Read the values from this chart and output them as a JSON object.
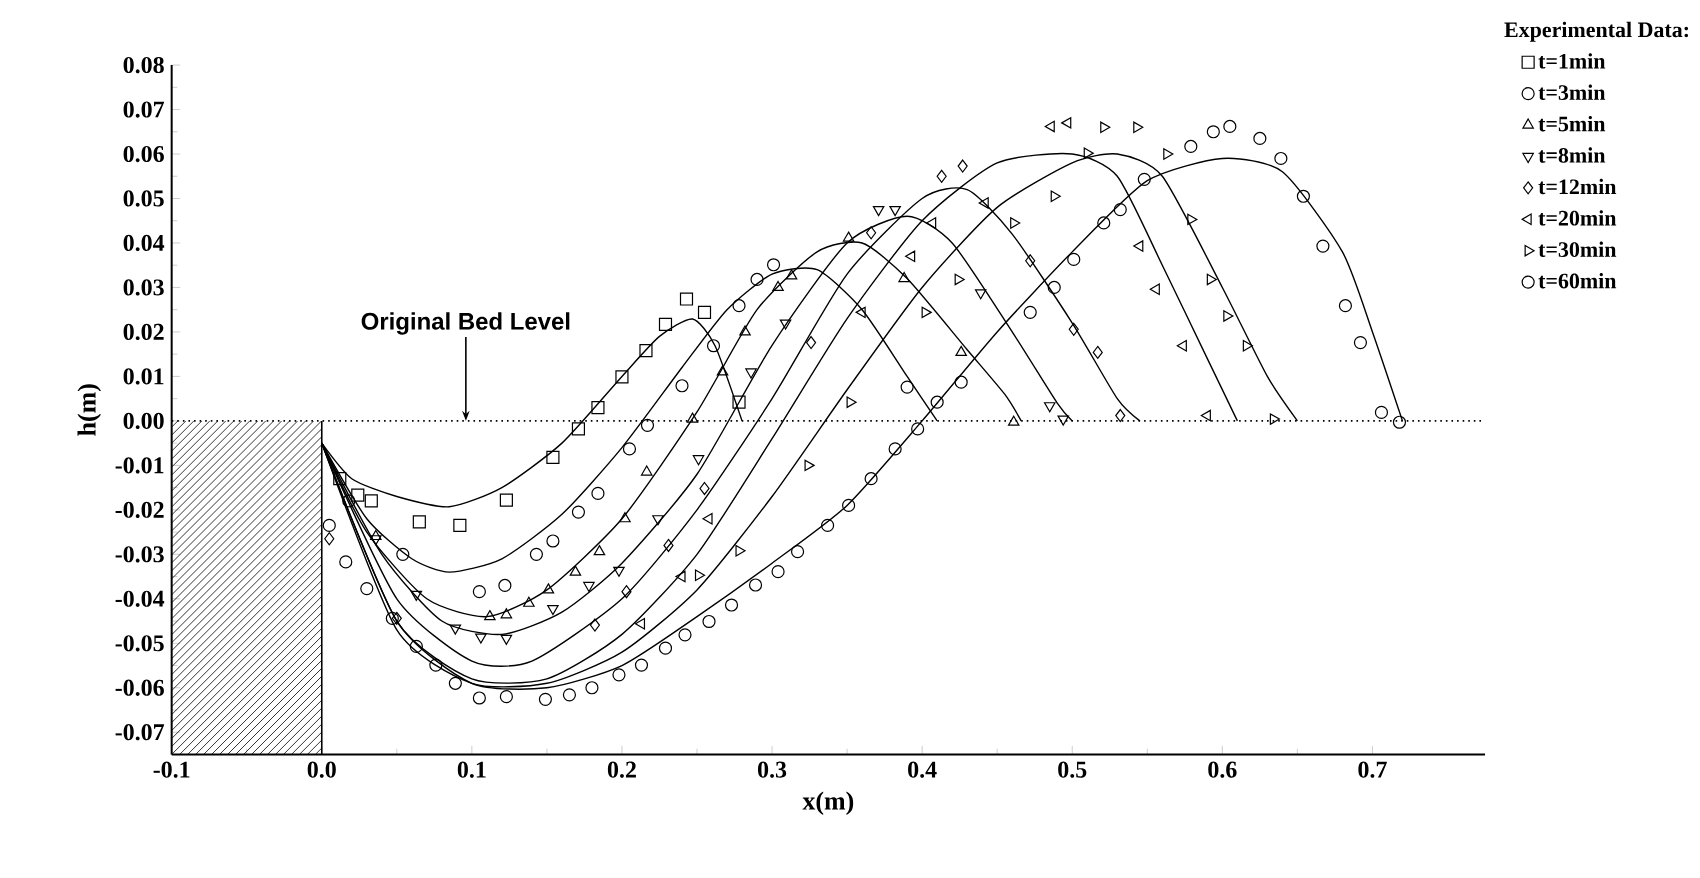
{
  "chart_data": {
    "type": "line",
    "xlabel": "x(m)",
    "ylabel": "h(m)",
    "legend_title": "Experimental Data:",
    "legend": "right",
    "xlim": [
      -0.1,
      0.775
    ],
    "ylim": [
      -0.075,
      0.08
    ],
    "xticks": [
      -0.1,
      {
        "value": 0,
        "label": "0.0"
      },
      0.1,
      0.2,
      0.3,
      0.4,
      0.5,
      0.6,
      0.7
    ],
    "yticks": [
      0.08,
      0.07,
      0.06,
      0.05,
      0.04,
      0.03,
      0.02,
      0.01,
      {
        "value": 0,
        "label": "0.00"
      },
      -0.01,
      -0.02,
      -0.03,
      -0.04,
      -0.05,
      -0.06,
      -0.07
    ],
    "ref_lines": [
      {
        "axis": "y",
        "value": 0,
        "line_style": "dotted",
        "color": "#000000"
      }
    ],
    "annotations": [
      {
        "text": "Original Bed Level",
        "x": 0.096,
        "y": 0
      }
    ],
    "series": [
      {
        "name": "t=1min",
        "type": "scatter",
        "marker": "square",
        "color": "#000000",
        "x": [
          0.012,
          0.024,
          0.033,
          0.065,
          0.092,
          0.123,
          0.154,
          0.171,
          0.184,
          0.2,
          0.216,
          0.229,
          0.243,
          0.255,
          0.278
        ],
        "values": [
          -0.013,
          -0.0167,
          -0.018,
          -0.0227,
          -0.0235,
          -0.0178,
          -0.0082,
          -0.0018,
          0.003,
          0.0099,
          0.0158,
          0.0217,
          0.0274,
          0.0244,
          0.0042
        ]
      },
      {
        "name": "t=3min",
        "type": "scatter",
        "marker": "circle",
        "color": "#000000",
        "x": [
          0.018,
          0.054,
          0.105,
          0.122,
          0.143,
          0.154,
          0.171,
          0.184,
          0.205,
          0.217,
          0.24,
          0.261,
          0.278,
          0.29,
          0.301,
          0.39
        ],
        "values": [
          -0.018,
          -0.03,
          -0.0384,
          -0.037,
          -0.03,
          -0.027,
          -0.0205,
          -0.0163,
          -0.0063,
          -0.001,
          0.0079,
          0.0169,
          0.0259,
          0.0318,
          0.0351,
          0.0076
        ]
      },
      {
        "name": "t=5min",
        "type": "scatter",
        "marker": "triangle",
        "color": "#000000",
        "x": [
          0.036,
          0.112,
          0.123,
          0.138,
          0.151,
          0.169,
          0.185,
          0.202,
          0.2165,
          0.247,
          0.267,
          0.282,
          0.304,
          0.313,
          0.351,
          0.388,
          0.426,
          0.461
        ],
        "values": [
          -0.026,
          -0.044,
          -0.0436,
          -0.041,
          -0.038,
          -0.034,
          -0.0294,
          -0.022,
          -0.0115,
          0.0004,
          0.011,
          0.02,
          0.03,
          0.0326,
          0.0411,
          0.032,
          0.0154,
          -0.0003
        ]
      },
      {
        "name": "t=8min",
        "type": "scatter",
        "marker": "triangle-down",
        "color": "#000000",
        "x": [
          0.036,
          0.063,
          0.089,
          0.106,
          0.123,
          0.154,
          0.178,
          0.198,
          0.224,
          0.251,
          0.286,
          0.309,
          0.371,
          0.382,
          0.439,
          0.485,
          0.494
        ],
        "values": [
          -0.0265,
          -0.039,
          -0.0466,
          -0.0486,
          -0.0489,
          -0.0422,
          -0.037,
          -0.0336,
          -0.022,
          -0.0085,
          0.011,
          0.022,
          0.0475,
          0.0475,
          0.0288,
          0.0034,
          0.0004
        ]
      },
      {
        "name": "t=12min",
        "type": "scatter",
        "marker": "diamond",
        "color": "#000000",
        "x": [
          0.005,
          0.05,
          0.182,
          0.203,
          0.231,
          0.255,
          0.326,
          0.366,
          0.413,
          0.427,
          0.472,
          0.501,
          0.517,
          0.532
        ],
        "values": [
          -0.0265,
          -0.0444,
          -0.0459,
          -0.0384,
          -0.028,
          -0.0152,
          0.0176,
          0.0423,
          0.055,
          0.0573,
          0.036,
          0.0206,
          0.0154,
          0.0012
        ]
      },
      {
        "name": "t=20min",
        "type": "scatter",
        "marker": "triangle-left",
        "color": "#000000",
        "x": [
          0.213,
          0.24,
          0.258,
          0.36,
          0.393,
          0.407,
          0.442,
          0.486,
          0.497,
          0.545,
          0.556,
          0.574,
          0.59
        ],
        "values": [
          -0.0456,
          -0.035,
          -0.022,
          0.0244,
          0.037,
          0.0445,
          0.049,
          0.0662,
          0.067,
          0.0393,
          0.0296,
          0.0169,
          0.0012
        ]
      },
      {
        "name": "t=30min",
        "type": "scatter",
        "marker": "triangle-right",
        "color": "#000000",
        "x": [
          0.251,
          0.278,
          0.324,
          0.352,
          0.402,
          0.424,
          0.461,
          0.488,
          0.51,
          0.521,
          0.543,
          0.563,
          0.579,
          0.592,
          0.603,
          0.616,
          0.634
        ],
        "values": [
          -0.0347,
          -0.0292,
          -0.01,
          0.0042,
          0.0244,
          0.0318,
          0.0445,
          0.0505,
          0.0602,
          0.066,
          0.066,
          0.06,
          0.0453,
          0.0318,
          0.0236,
          0.0169,
          0.0004
        ]
      },
      {
        "name": "t=60min",
        "type": "scatter",
        "marker": "circle",
        "color": "#000000",
        "x": [
          0.005,
          0.016,
          0.03,
          0.047,
          0.063,
          0.076,
          0.089,
          0.105,
          0.123,
          0.149,
          0.165,
          0.18,
          0.198,
          0.213,
          0.229,
          0.242,
          0.258,
          0.273,
          0.289,
          0.304,
          0.317,
          0.337,
          0.351,
          0.366,
          0.382,
          0.397,
          0.41,
          0.426,
          0.472,
          0.488,
          0.501,
          0.521,
          0.532,
          0.548,
          0.579,
          0.594,
          0.605,
          0.625,
          0.639,
          0.654,
          0.667,
          0.682,
          0.692,
          0.706,
          0.718
        ],
        "values": [
          -0.0235,
          -0.0317,
          -0.0377,
          -0.0444,
          -0.0507,
          -0.0549,
          -0.059,
          -0.0623,
          -0.062,
          -0.0626,
          -0.0616,
          -0.06,
          -0.0571,
          -0.0549,
          -0.0511,
          -0.0481,
          -0.0451,
          -0.0414,
          -0.0369,
          -0.0339,
          -0.0294,
          -0.0235,
          -0.019,
          -0.013,
          -0.0063,
          -0.0018,
          0.0042,
          0.0087,
          0.0244,
          0.03,
          0.0363,
          0.0445,
          0.0475,
          0.0543,
          0.0617,
          0.065,
          0.0662,
          0.0635,
          0.059,
          0.0505,
          0.0393,
          0.0259,
          0.0176,
          0.0019,
          -0.0003
        ]
      },
      {
        "color": "#000000",
        "x": [
          0,
          0.02,
          0.05,
          0.085,
          0.12,
          0.16,
          0.2,
          0.225,
          0.247,
          0.262,
          0.28
        ],
        "values": [
          -0.005,
          -0.013,
          -0.017,
          -0.0193,
          -0.015,
          -0.005,
          0.01,
          0.019,
          0.0229,
          0.0169,
          0
        ]
      },
      {
        "color": "#000000",
        "x": [
          0,
          0.03,
          0.06,
          0.085,
          0.12,
          0.16,
          0.2,
          0.24,
          0.27,
          0.3,
          0.33,
          0.36,
          0.39,
          0.41
        ],
        "values": [
          -0.005,
          -0.022,
          -0.031,
          -0.034,
          -0.031,
          -0.021,
          -0.006,
          0.012,
          0.025,
          0.033,
          0.034,
          0.025,
          0.01,
          0
        ]
      },
      {
        "color": "#000000",
        "x": [
          0,
          0.03,
          0.07,
          0.11,
          0.15,
          0.2,
          0.25,
          0.29,
          0.33,
          0.36,
          0.39,
          0.43,
          0.455,
          0.466
        ],
        "values": [
          -0.005,
          -0.025,
          -0.04,
          -0.044,
          -0.038,
          -0.022,
          0.002,
          0.025,
          0.038,
          0.04,
          0.032,
          0.016,
          0.006,
          0
        ]
      },
      {
        "color": "#000000",
        "x": [
          0,
          0.04,
          0.08,
          0.12,
          0.16,
          0.2,
          0.25,
          0.3,
          0.35,
          0.39,
          0.42,
          0.46,
          0.49,
          0.5
        ],
        "values": [
          -0.005,
          -0.03,
          -0.045,
          -0.048,
          -0.043,
          -0.032,
          -0.012,
          0.017,
          0.04,
          0.046,
          0.04,
          0.02,
          0.004,
          0
        ]
      },
      {
        "color": "#000000",
        "x": [
          0,
          0.05,
          0.1,
          0.14,
          0.2,
          0.25,
          0.3,
          0.35,
          0.4,
          0.43,
          0.46,
          0.5,
          0.53,
          0.545
        ],
        "values": [
          -0.005,
          -0.04,
          -0.054,
          -0.054,
          -0.04,
          -0.02,
          0.005,
          0.033,
          0.05,
          0.052,
          0.042,
          0.022,
          0.005,
          0
        ]
      },
      {
        "color": "#000000",
        "x": [
          0,
          0.05,
          0.1,
          0.15,
          0.2,
          0.25,
          0.3,
          0.35,
          0.4,
          0.45,
          0.5,
          0.53,
          0.56,
          0.59,
          0.61
        ],
        "values": [
          -0.005,
          -0.045,
          -0.058,
          -0.058,
          -0.048,
          -0.03,
          -0.004,
          0.023,
          0.045,
          0.058,
          0.06,
          0.055,
          0.035,
          0.014,
          0
        ]
      },
      {
        "color": "#000000",
        "x": [
          0,
          0.05,
          0.1,
          0.15,
          0.2,
          0.25,
          0.3,
          0.35,
          0.4,
          0.45,
          0.5,
          0.53,
          0.56,
          0.6,
          0.63,
          0.65
        ],
        "values": [
          -0.005,
          -0.047,
          -0.059,
          -0.059,
          -0.052,
          -0.038,
          -0.017,
          0.007,
          0.03,
          0.048,
          0.058,
          0.06,
          0.055,
          0.03,
          0.01,
          0
        ]
      },
      {
        "color": "#000000",
        "x": [
          0,
          0.05,
          0.1,
          0.15,
          0.2,
          0.25,
          0.3,
          0.35,
          0.4,
          0.45,
          0.5,
          0.55,
          0.6,
          0.64,
          0.68,
          0.7,
          0.72
        ],
        "values": [
          -0.005,
          -0.045,
          -0.059,
          -0.06,
          -0.055,
          -0.044,
          -0.032,
          -0.019,
          0,
          0.02,
          0.038,
          0.054,
          0.059,
          0.056,
          0.038,
          0.02,
          0
        ]
      }
    ]
  }
}
